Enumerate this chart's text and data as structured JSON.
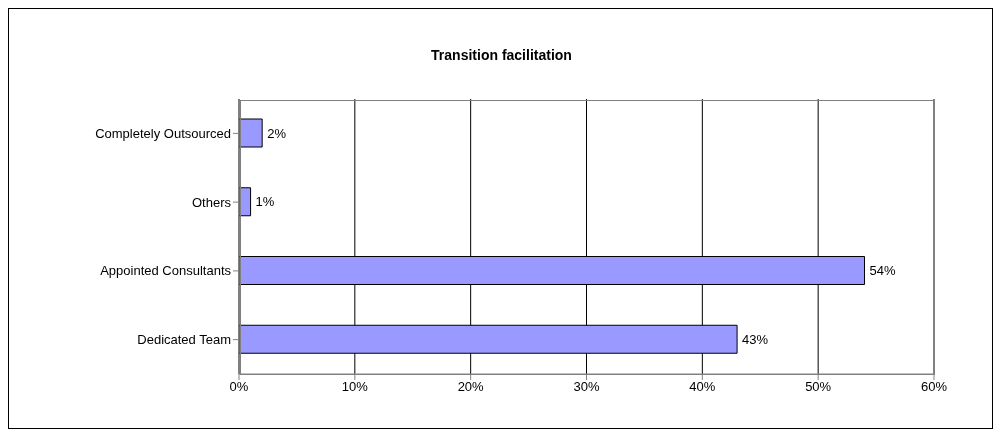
{
  "chart_data": {
    "type": "bar",
    "orientation": "horizontal",
    "title": "Transition facilitation",
    "categories": [
      "Completely Outsourced",
      "Others",
      "Appointed Consultants",
      "Dedicated Team"
    ],
    "values": [
      2,
      1,
      54,
      43
    ],
    "color": "#9999ff",
    "value_labels": [
      "2%",
      "1%",
      "54%",
      "43%"
    ],
    "xlim": [
      0,
      60
    ],
    "xticks": [
      {
        "value": 0,
        "label": "0%"
      },
      {
        "value": 10,
        "label": "10%"
      },
      {
        "value": 20,
        "label": "20%"
      },
      {
        "value": 30,
        "label": "30%"
      },
      {
        "value": 40,
        "label": "40%"
      },
      {
        "value": 50,
        "label": "50%"
      },
      {
        "value": 60,
        "label": "60%"
      }
    ],
    "grid": "x"
  }
}
